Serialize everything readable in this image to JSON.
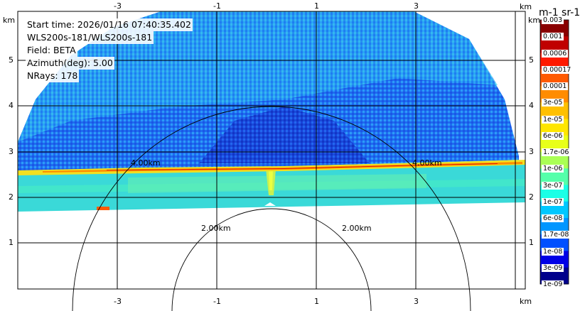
{
  "info": {
    "start_time": "Start time: 2026/01/16 07:40:35.402",
    "radar": "WLS200s-181/WLS200s-181",
    "field": "Field: BETA",
    "azimuth": "Azimuth(deg): 5.00",
    "nrays": "NRays: 178"
  },
  "axes": {
    "x_top_ticks": [
      "-3",
      "-1",
      "1",
      "3"
    ],
    "x_bottom_ticks": [
      "-3",
      "-1",
      "1",
      "3"
    ],
    "x_unit": "km",
    "y_left_ticks": [
      "5",
      "4",
      "3",
      "2",
      "1"
    ],
    "y_right_ticks": [
      "5",
      "4",
      "3",
      "2",
      "1"
    ],
    "y_unit": "km"
  },
  "range_rings": {
    "labels": [
      "4.00km",
      "4.00km",
      "2.00km",
      "2.00km"
    ]
  },
  "colorbar": {
    "title": "m-1 sr-1",
    "labels": [
      "0.003",
      "0.001",
      "0.0006",
      "0.00017",
      "0.0001",
      "3e-05",
      "1e-05",
      "6e-06",
      "1.7e-06",
      "1e-06",
      "3e-07",
      "1e-07",
      "6e-08",
      "1.7e-08",
      "1e-08",
      "3e-09",
      "1e-09"
    ],
    "colors": [
      "#8a0000",
      "#c00000",
      "#ff1a00",
      "#ff5a00",
      "#ff8c00",
      "#ffc000",
      "#ffe600",
      "#e8ff1a",
      "#aaff55",
      "#55ffaa",
      "#1affe6",
      "#00c8ff",
      "#0096ff",
      "#0050ff",
      "#0000e6",
      "#00008c"
    ]
  }
}
